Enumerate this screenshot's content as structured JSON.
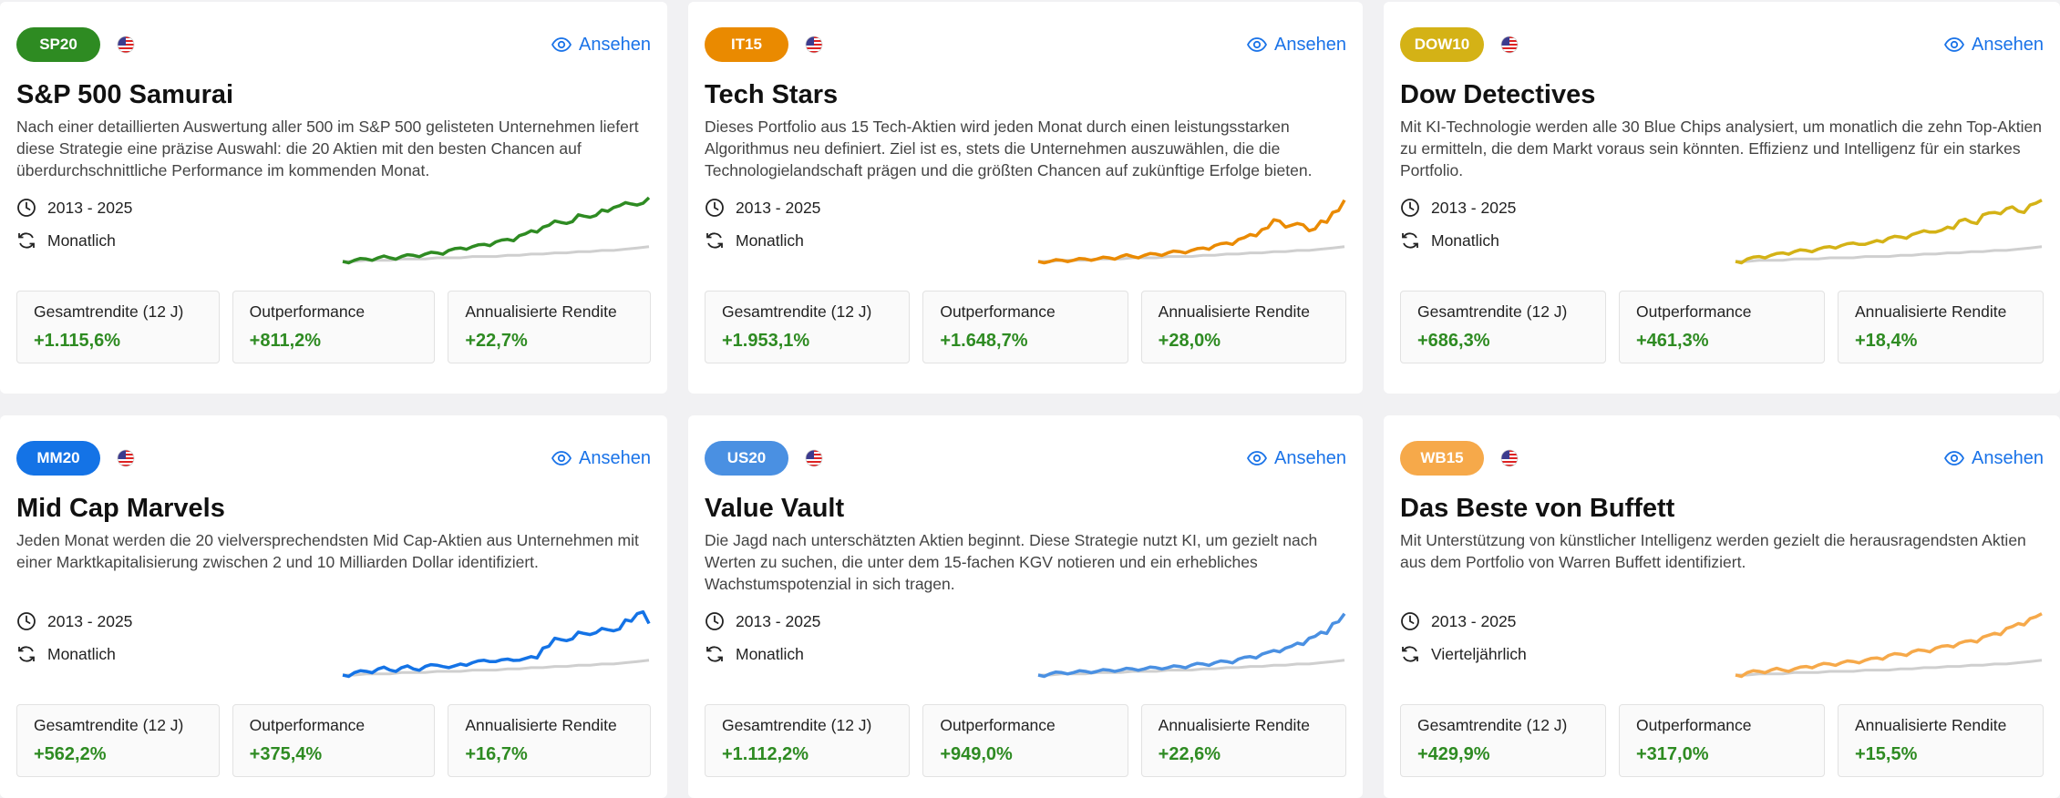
{
  "view_label": "Ansehen",
  "stat_labels": [
    "Gesamtrendite (12 J)",
    "Outperformance",
    "Annualisierte Rendite"
  ],
  "cards": [
    {
      "badge": "SP20",
      "badge_color": "#2e8b22",
      "line_color": "#2e8b22",
      "title": "S&P 500 Samurai",
      "description": "Nach einer detaillierten Auswertung aller 500 im S&P 500 gelisteten Unternehmen liefert diese Strategie eine präzise Auswahl: die 20 Aktien mit den besten Chancen auf überdurchschnittliche Performance im kommenden Monat.",
      "period": "2013 - 2025",
      "frequency": "Monatlich",
      "stats": [
        "+1.115,6%",
        "+811,2%",
        "+22,7%"
      ],
      "performance": [
        0,
        1,
        2,
        3,
        3,
        4,
        5,
        6,
        7,
        9,
        11,
        12,
        14,
        16,
        18,
        21,
        25,
        28,
        33,
        31,
        38,
        36,
        42,
        44,
        48,
        46,
        52
      ]
    },
    {
      "badge": "IT15",
      "badge_color": "#ea8a00",
      "line_color": "#ea8a00",
      "title": "Tech Stars",
      "description": "Dieses Portfolio aus 15 Tech-Aktien wird jeden Monat durch einen leistungsstarken Algorithmus neu definiert. Ziel ist es, stets die Unternehmen auszuwählen, die die Technologielandschaft prägen und die größten Chancen auf zukünftige Erfolge bieten.",
      "period": "2013 - 2025",
      "frequency": "Monatlich",
      "stats": [
        "+1.953,1%",
        "+1.648,7%",
        "+28,0%"
      ],
      "performance": [
        0,
        0,
        1,
        1,
        2,
        2,
        3,
        4,
        4,
        5,
        6,
        7,
        8,
        9,
        11,
        13,
        15,
        18,
        22,
        26,
        34,
        28,
        31,
        25,
        33,
        40,
        50
      ]
    },
    {
      "badge": "DOW10",
      "badge_color": "#d4b216",
      "line_color": "#d4b216",
      "title": "Dow Detectives",
      "description": "Mit KI-Technologie werden alle 30 Blue Chips analysiert, um monatlich die zehn Top-Aktien zu ermitteln, die dem Markt voraus sein könnten. Effizienz und Intelligenz für ein starkes Portfolio.",
      "period": "2013 - 2025",
      "frequency": "Monatlich",
      "stats": [
        "+686,3%",
        "+461,3%",
        "+18,4%"
      ],
      "performance": [
        0,
        2,
        4,
        5,
        7,
        8,
        9,
        10,
        12,
        13,
        15,
        14,
        17,
        19,
        20,
        22,
        25,
        24,
        28,
        33,
        32,
        38,
        40,
        43,
        41,
        46,
        50
      ]
    },
    {
      "badge": "MM20",
      "badge_color": "#1473e6",
      "line_color": "#1473e6",
      "title": "Mid Cap Marvels",
      "description": "Jeden Monat werden die 20 vielversprechendsten Mid Cap-Aktien aus Unternehmen mit einer Marktkapitalisierung zwischen 2 und 10 Milliarden Dollar identifiziert.",
      "period": "2013 - 2025",
      "frequency": "Monatlich",
      "stats": [
        "+562,2%",
        "+375,4%",
        "+16,7%"
      ],
      "performance": [
        0,
        2,
        3,
        5,
        4,
        6,
        5,
        7,
        8,
        6,
        9,
        10,
        12,
        11,
        13,
        12,
        15,
        22,
        30,
        28,
        35,
        33,
        38,
        36,
        45,
        50,
        42
      ]
    },
    {
      "badge": "US20",
      "badge_color": "#4a90e2",
      "line_color": "#4a90e2",
      "title": "Value Vault",
      "description": "Die Jagd nach unterschätzten Aktien beginnt. Diese Strategie nutzt KI, um gezielt nach Werten zu suchen, die unter dem 15-fachen KGV notieren und ein erhebliches Wachstumspotenzial in sich tragen.",
      "period": "2013 - 2025",
      "frequency": "Monatlich",
      "stats": [
        "+1.112,2%",
        "+949,0%",
        "+22,6%"
      ],
      "performance": [
        0,
        1,
        2,
        2,
        3,
        3,
        4,
        4,
        5,
        5,
        6,
        6,
        7,
        8,
        9,
        10,
        11,
        13,
        15,
        17,
        20,
        22,
        26,
        30,
        35,
        42,
        50
      ]
    },
    {
      "badge": "WB15",
      "badge_color": "#f6a94a",
      "line_color": "#f6a94a",
      "title": "Das Beste von Buffett",
      "description": "Mit Unterstützung von künstlicher Intelligenz werden gezielt die herausragendsten Aktien aus dem Portfolio von Warren Buffett identifiziert.",
      "period": "2013 - 2025",
      "frequency": "Vierteljährlich",
      "stats": [
        "+429,9%",
        "+317,0%",
        "+15,5%"
      ],
      "performance": [
        0,
        2,
        3,
        4,
        4,
        5,
        7,
        8,
        9,
        10,
        11,
        12,
        14,
        16,
        17,
        19,
        20,
        22,
        24,
        26,
        28,
        31,
        34,
        38,
        42,
        46,
        50
      ]
    }
  ],
  "benchmark": [
    0,
    0,
    1,
    1,
    1,
    2,
    2,
    2,
    3,
    3,
    3,
    4,
    4,
    4,
    5,
    5,
    6,
    6,
    7,
    7,
    8,
    8,
    9,
    9,
    10,
    11,
    12
  ]
}
